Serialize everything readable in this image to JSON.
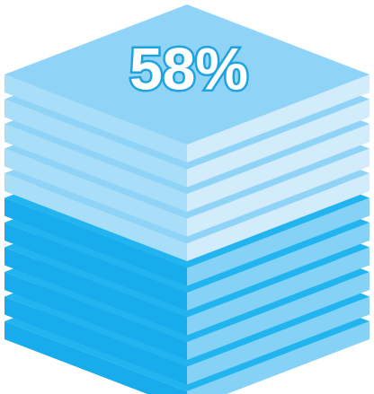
{
  "infographic": {
    "label": "58%"
  }
}
